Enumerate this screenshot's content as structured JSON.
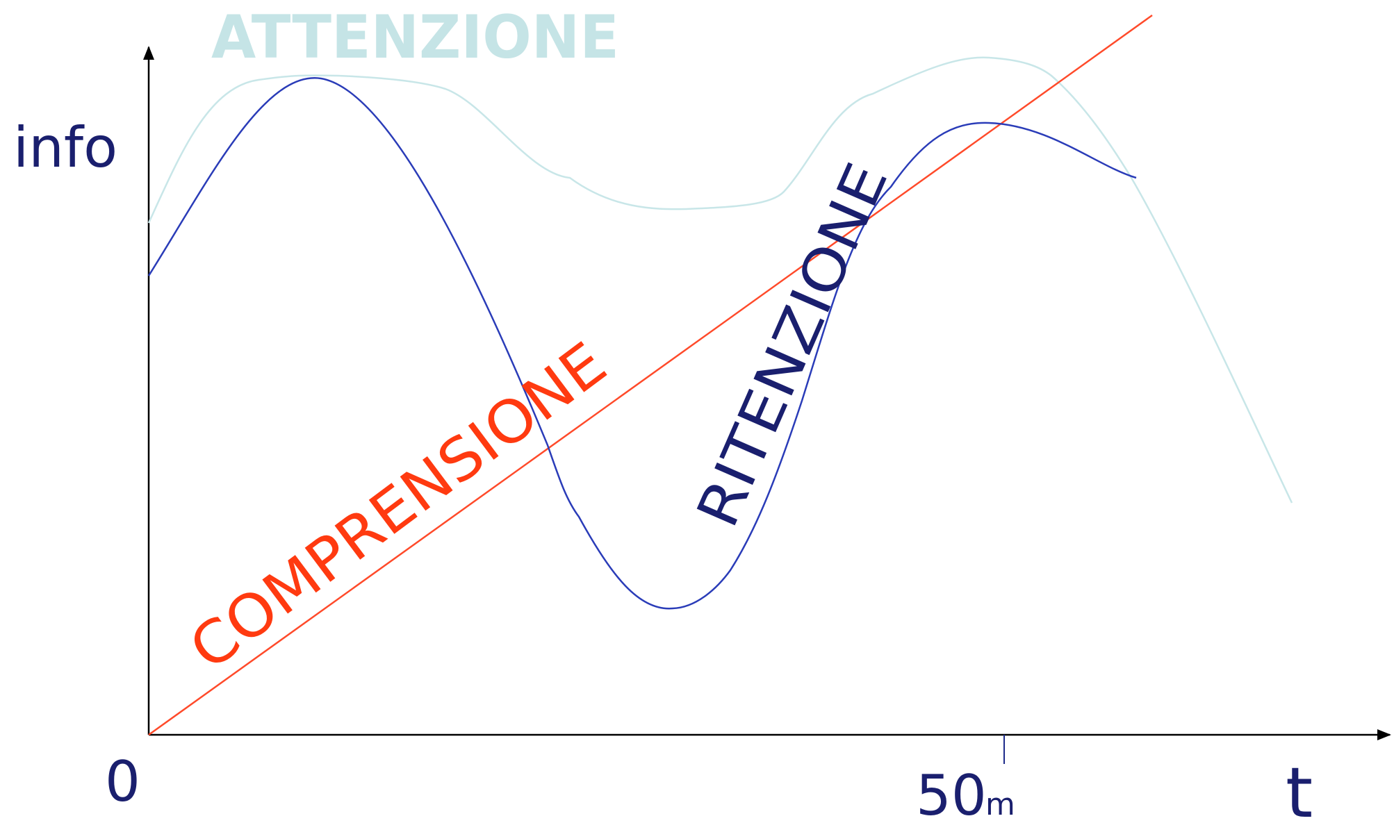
{
  "title": "ATTENZIONE",
  "y_label": "info",
  "labels": {
    "comprehension": "COMPRENSIONE",
    "retention": "RITENZIONE"
  },
  "x_axis": {
    "origin": "0",
    "tick": "50",
    "tick_unit": "m",
    "label": "t"
  }
}
